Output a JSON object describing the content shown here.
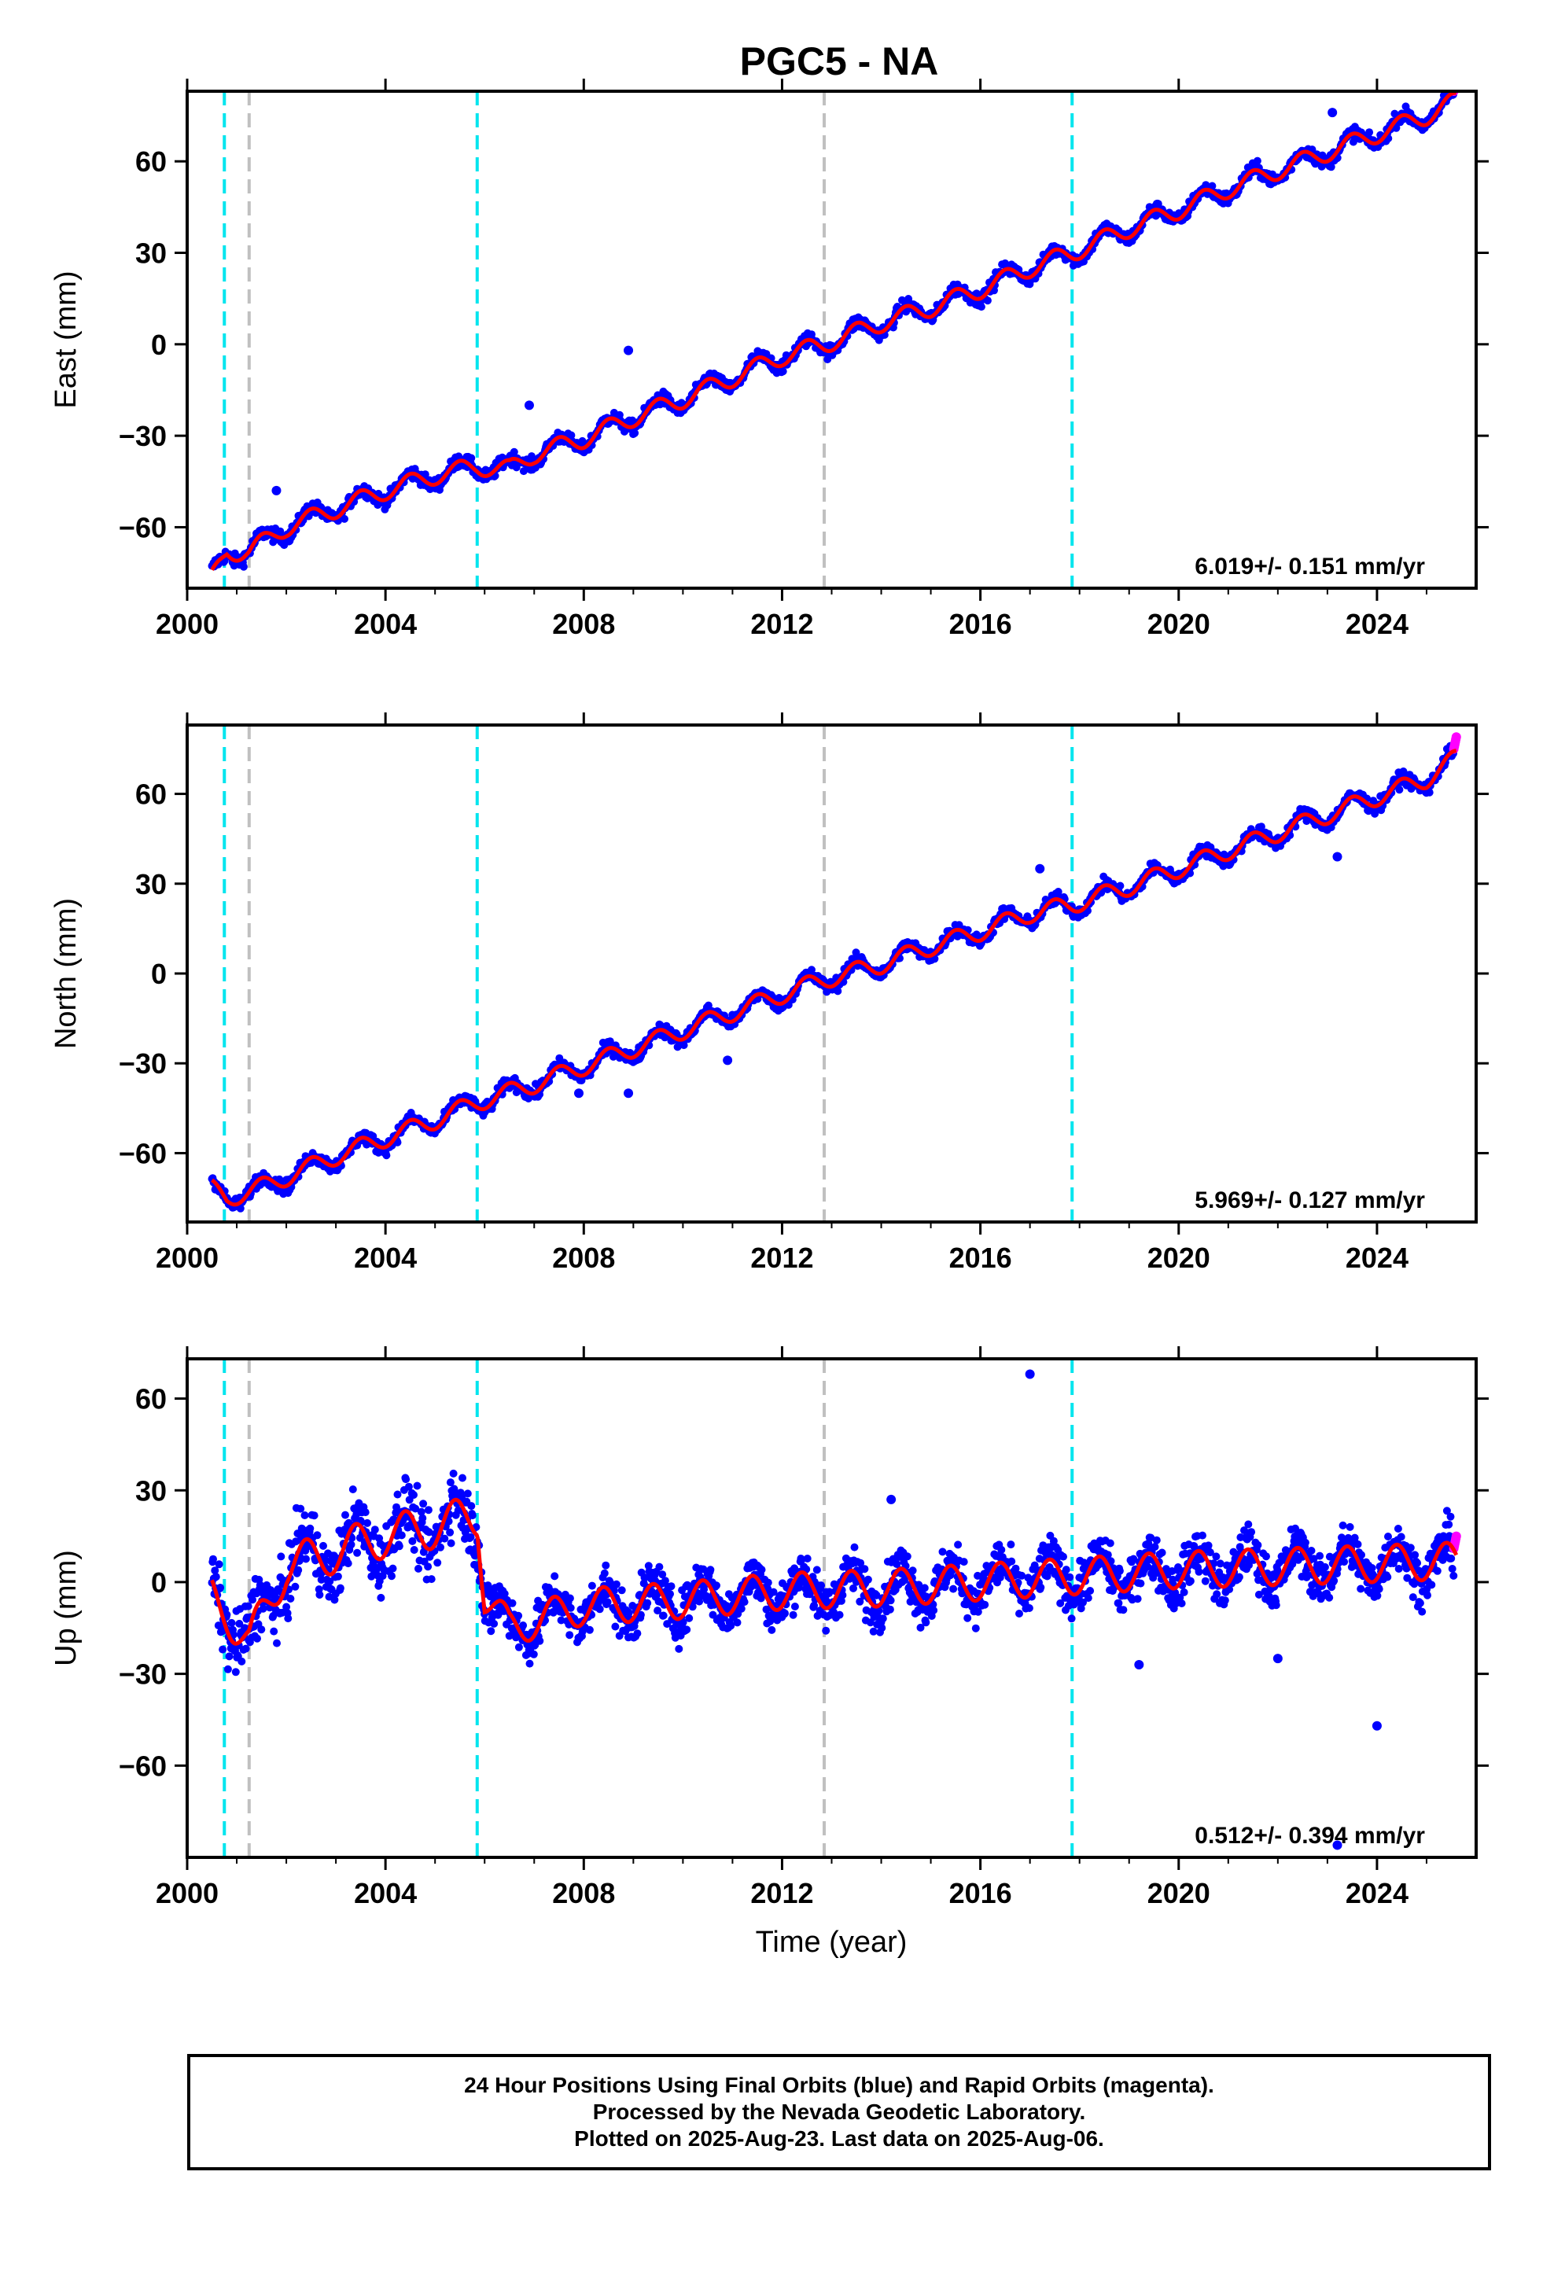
{
  "chart_data": {
    "type": "scatter",
    "title": "PGC5 - NA",
    "xlabel": "Time (year)",
    "xlim": [
      2000.0,
      2026.0
    ],
    "xticks": [
      2000,
      2004,
      2008,
      2012,
      2016,
      2020,
      2024
    ],
    "event_lines": [
      {
        "x": 2000.75,
        "color": "#00e5ee"
      },
      {
        "x": 2001.25,
        "color": "#c0c0c0"
      },
      {
        "x": 2005.85,
        "color": "#00e5ee"
      },
      {
        "x": 2012.85,
        "color": "#c0c0c0"
      },
      {
        "x": 2017.85,
        "color": "#00e5ee"
      }
    ],
    "colors": {
      "final_orbits": "#0000ff",
      "rapid_orbits": "#ff00ff",
      "model": "#ff0000"
    },
    "panels": [
      {
        "name": "East",
        "ylabel": "East (mm)",
        "ylim": [
          -80,
          83
        ],
        "yticks": [
          -60,
          -30,
          0,
          30,
          60
        ],
        "rate_label": "6.019+/- 0.151 mm/yr",
        "model": [
          [
            2000.5,
            -77
          ],
          [
            2000.8,
            -68
          ],
          [
            2001.25,
            -68
          ],
          [
            2002.0,
            -60
          ],
          [
            2003.0,
            -54
          ],
          [
            2004.0,
            -48
          ],
          [
            2005.0,
            -43
          ],
          [
            2005.85,
            -40
          ],
          [
            2006.5,
            -41
          ],
          [
            2007.0,
            -36
          ],
          [
            2008.0,
            -31
          ],
          [
            2009.0,
            -24
          ],
          [
            2010.0,
            -18
          ],
          [
            2011.0,
            -11
          ],
          [
            2012.0,
            -4
          ],
          [
            2012.85,
            0
          ],
          [
            2014.0,
            7
          ],
          [
            2015.0,
            12
          ],
          [
            2016.0,
            18
          ],
          [
            2017.0,
            25
          ],
          [
            2017.85,
            30
          ],
          [
            2019.0,
            38
          ],
          [
            2020.0,
            44
          ],
          [
            2021.0,
            51
          ],
          [
            2022.0,
            57
          ],
          [
            2023.0,
            63
          ],
          [
            2024.0,
            69
          ],
          [
            2025.0,
            75
          ],
          [
            2025.6,
            80
          ]
        ],
        "outliers": [
          [
            2008.9,
            -2
          ],
          [
            2006.9,
            -20
          ],
          [
            2001.8,
            -48
          ],
          [
            2023.1,
            76
          ]
        ]
      },
      {
        "name": "North",
        "ylabel": "North (mm)",
        "ylim": [
          -83,
          83
        ],
        "yticks": [
          -60,
          -30,
          0,
          30,
          60
        ],
        "rate_label": "5.969+/- 0.127 mm/yr",
        "model": [
          [
            2000.5,
            -72
          ],
          [
            2000.8,
            -75
          ],
          [
            2001.25,
            -73
          ],
          [
            2002.0,
            -68
          ],
          [
            2003.0,
            -61
          ],
          [
            2004.0,
            -55
          ],
          [
            2005.0,
            -49
          ],
          [
            2005.85,
            -43
          ],
          [
            2007.0,
            -37
          ],
          [
            2008.0,
            -31
          ],
          [
            2009.0,
            -25
          ],
          [
            2010.0,
            -19
          ],
          [
            2011.0,
            -13
          ],
          [
            2012.0,
            -7
          ],
          [
            2012.85,
            -2
          ],
          [
            2014.0,
            3
          ],
          [
            2015.0,
            9
          ],
          [
            2016.0,
            14
          ],
          [
            2017.0,
            20
          ],
          [
            2017.85,
            23
          ],
          [
            2019.0,
            29
          ],
          [
            2020.0,
            35
          ],
          [
            2021.0,
            41
          ],
          [
            2022.0,
            47
          ],
          [
            2023.0,
            53
          ],
          [
            2024.0,
            59
          ],
          [
            2025.0,
            65
          ],
          [
            2025.6,
            72
          ]
        ],
        "outliers": [
          [
            2010.9,
            -29
          ],
          [
            2017.2,
            35
          ],
          [
            2007.9,
            -40
          ],
          [
            2008.9,
            -40
          ],
          [
            2023.2,
            39
          ]
        ]
      },
      {
        "name": "Up",
        "ylabel": "Up (mm)",
        "ylim": [
          -90,
          73
        ],
        "yticks": [
          -60,
          -30,
          0,
          30,
          60
        ],
        "rate_label": "0.512+/- 0.394 mm/yr",
        "model": [
          [
            2000.5,
            -5
          ],
          [
            2000.8,
            -10
          ],
          [
            2001.25,
            -20
          ],
          [
            2002.0,
            5
          ],
          [
            2003.0,
            10
          ],
          [
            2004.0,
            15
          ],
          [
            2005.0,
            18
          ],
          [
            2005.85,
            22
          ],
          [
            2006.0,
            -5
          ],
          [
            2006.5,
            -15
          ],
          [
            2008.0,
            -8
          ],
          [
            2010.0,
            -6
          ],
          [
            2012.0,
            -3
          ],
          [
            2014.0,
            -2
          ],
          [
            2016.0,
            0
          ],
          [
            2018.0,
            2
          ],
          [
            2020.0,
            4
          ],
          [
            2022.0,
            5
          ],
          [
            2024.0,
            6
          ],
          [
            2025.6,
            7
          ]
        ],
        "outliers": [
          [
            2017.0,
            68
          ],
          [
            2023.2,
            -86
          ],
          [
            2024.0,
            -47
          ],
          [
            2019.2,
            -27
          ],
          [
            2022.0,
            -25
          ],
          [
            2014.2,
            27
          ]
        ]
      }
    ],
    "footer_lines": [
      "24 Hour Positions Using Final Orbits (blue) and Rapid Orbits (magenta).",
      "Processed by the Nevada Geodetic Laboratory.",
      "Plotted on 2025-Aug-23. Last data on 2025-Aug-06."
    ]
  }
}
